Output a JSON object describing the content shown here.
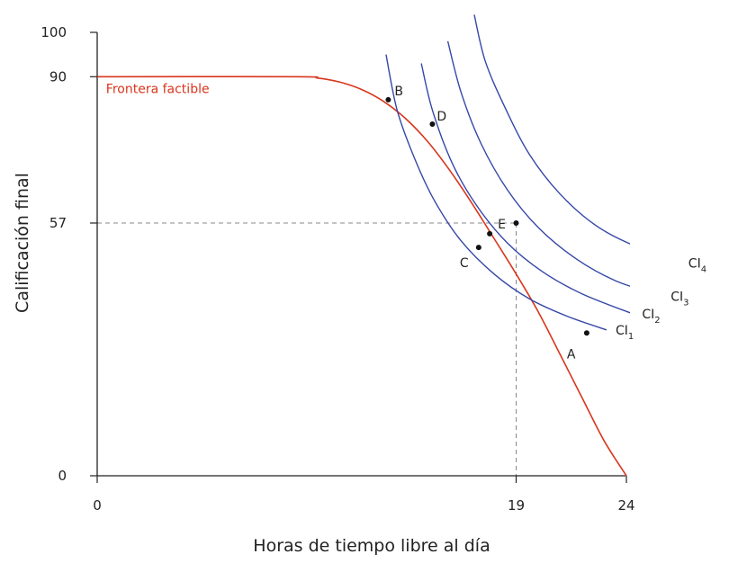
{
  "chart_data": {
    "type": "line",
    "title": "",
    "xlabel": "Horas de tiempo libre al día",
    "ylabel": "Calificación final",
    "xlim": [
      0,
      25.5
    ],
    "ylim": [
      0,
      100
    ],
    "x_ticks": [
      {
        "value": 0,
        "label": "0"
      },
      {
        "value": 19,
        "label": "19"
      },
      {
        "value": 24,
        "label": "24"
      }
    ],
    "y_ticks": [
      {
        "value": 0,
        "label": "0"
      },
      {
        "value": 57,
        "label": "57"
      },
      {
        "value": 90,
        "label": "90"
      },
      {
        "value": 100,
        "label": "100"
      }
    ],
    "frontier": {
      "name": "Frontera factible",
      "points": [
        [
          0,
          90
        ],
        [
          9,
          90
        ],
        [
          10,
          89.7
        ],
        [
          11,
          88.8
        ],
        [
          12,
          87.1
        ],
        [
          13,
          84.4
        ],
        [
          14,
          80.5
        ],
        [
          15,
          75.3
        ],
        [
          16,
          68.8
        ],
        [
          17,
          61.4
        ],
        [
          18,
          53.5
        ],
        [
          19,
          45.5
        ],
        [
          20,
          37
        ],
        [
          21,
          27.3
        ],
        [
          22,
          17.5
        ],
        [
          23,
          7.8
        ],
        [
          24,
          0
        ]
      ]
    },
    "indifference_curves": [
      {
        "name": "CI",
        "sub": "1",
        "points": [
          [
            13.1,
            95
          ],
          [
            13.6,
            82.5
          ],
          [
            14.4,
            71.5
          ],
          [
            15.3,
            62
          ],
          [
            16.5,
            53
          ],
          [
            18,
            45.5
          ],
          [
            19.6,
            39.9
          ],
          [
            21.3,
            36
          ],
          [
            23.1,
            32.9
          ]
        ]
      },
      {
        "name": "CI",
        "sub": "2",
        "points": [
          [
            14.7,
            93
          ],
          [
            15.2,
            82.5
          ],
          [
            16.1,
            70.5
          ],
          [
            17.2,
            61
          ],
          [
            18.6,
            52.5
          ],
          [
            20.2,
            46
          ],
          [
            22,
            41
          ],
          [
            24.3,
            36.5
          ]
        ]
      },
      {
        "name": "CI",
        "sub": "3",
        "points": [
          [
            15.9,
            98
          ],
          [
            16.5,
            86.5
          ],
          [
            17.4,
            75
          ],
          [
            18.6,
            64.5
          ],
          [
            20,
            56
          ],
          [
            21.7,
            49
          ],
          [
            23.5,
            44
          ],
          [
            25.6,
            40.5
          ]
        ]
      },
      {
        "name": "CI",
        "sub": "4",
        "points": [
          [
            17.1,
            104
          ],
          [
            17.6,
            93.5
          ],
          [
            18.5,
            83
          ],
          [
            19.6,
            72.5
          ],
          [
            21,
            63.5
          ],
          [
            22.6,
            56.5
          ],
          [
            24.3,
            52
          ],
          [
            26.4,
            48
          ]
        ]
      }
    ],
    "points": [
      {
        "label": "A",
        "x": 22.2,
        "y": 32.2
      },
      {
        "label": "B",
        "x": 13.2,
        "y": 84.8
      },
      {
        "label": "C",
        "x": 17.3,
        "y": 51.5
      },
      {
        "label": "D",
        "x": 15.2,
        "y": 79.3
      },
      {
        "label": "E",
        "x": 17.8,
        "y": 54.6
      },
      {
        "label": "",
        "x": 19,
        "y": 57
      }
    ],
    "guides": {
      "x": 19,
      "y": 57
    }
  }
}
